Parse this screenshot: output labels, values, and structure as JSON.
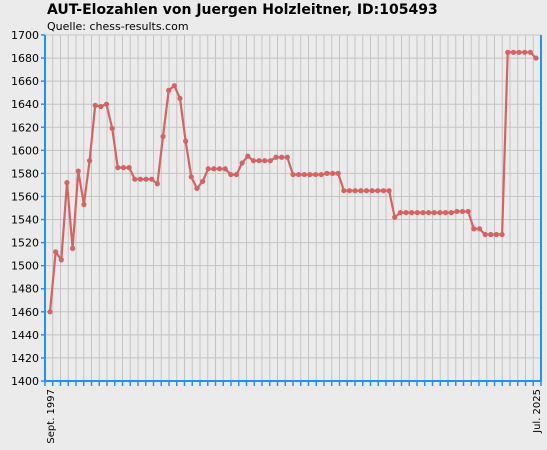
{
  "header": {
    "title": "AUT-Elozahlen von Juergen Holzleitner, ID:105493",
    "source": "Quelle: chess-results.com"
  },
  "colors": {
    "line": "#d46464",
    "axis": "#1e90ff",
    "grid": "#c4c4c4",
    "background": "#ebebeb"
  },
  "chart_data": {
    "type": "line",
    "title": "AUT-Elozahlen von Juergen Holzleitner, ID:105493",
    "xlabel": "",
    "ylabel": "",
    "ylim": [
      1400,
      1700
    ],
    "yticks": [
      1400,
      1420,
      1440,
      1460,
      1480,
      1500,
      1520,
      1540,
      1560,
      1580,
      1600,
      1620,
      1640,
      1660,
      1680,
      1700
    ],
    "grid": true,
    "legend": "none",
    "x_start_label": "Sept. 1997",
    "x_end_label": "Jul. 2025",
    "values": [
      1460,
      1512,
      1505,
      1572,
      1515,
      1582,
      1553,
      1591,
      1639,
      1638,
      1640,
      1619,
      1585,
      1585,
      1585,
      1575,
      1575,
      1575,
      1575,
      1571,
      1612,
      1652,
      1656,
      1645,
      1608,
      1577,
      1567,
      1573,
      1584,
      1584,
      1584,
      1584,
      1579,
      1579,
      1589,
      1595,
      1591,
      1591,
      1591,
      1591,
      1594,
      1594,
      1594,
      1579,
      1579,
      1579,
      1579,
      1579,
      1579,
      1580,
      1580,
      1580,
      1565,
      1565,
      1565,
      1565,
      1565,
      1565,
      1565,
      1565,
      1565,
      1542,
      1546,
      1546,
      1546,
      1546,
      1546,
      1546,
      1546,
      1546,
      1546,
      1546,
      1547,
      1547,
      1547,
      1532,
      1532,
      1527,
      1527,
      1527,
      1527,
      1685,
      1685,
      1685,
      1685,
      1685,
      1680
    ]
  }
}
